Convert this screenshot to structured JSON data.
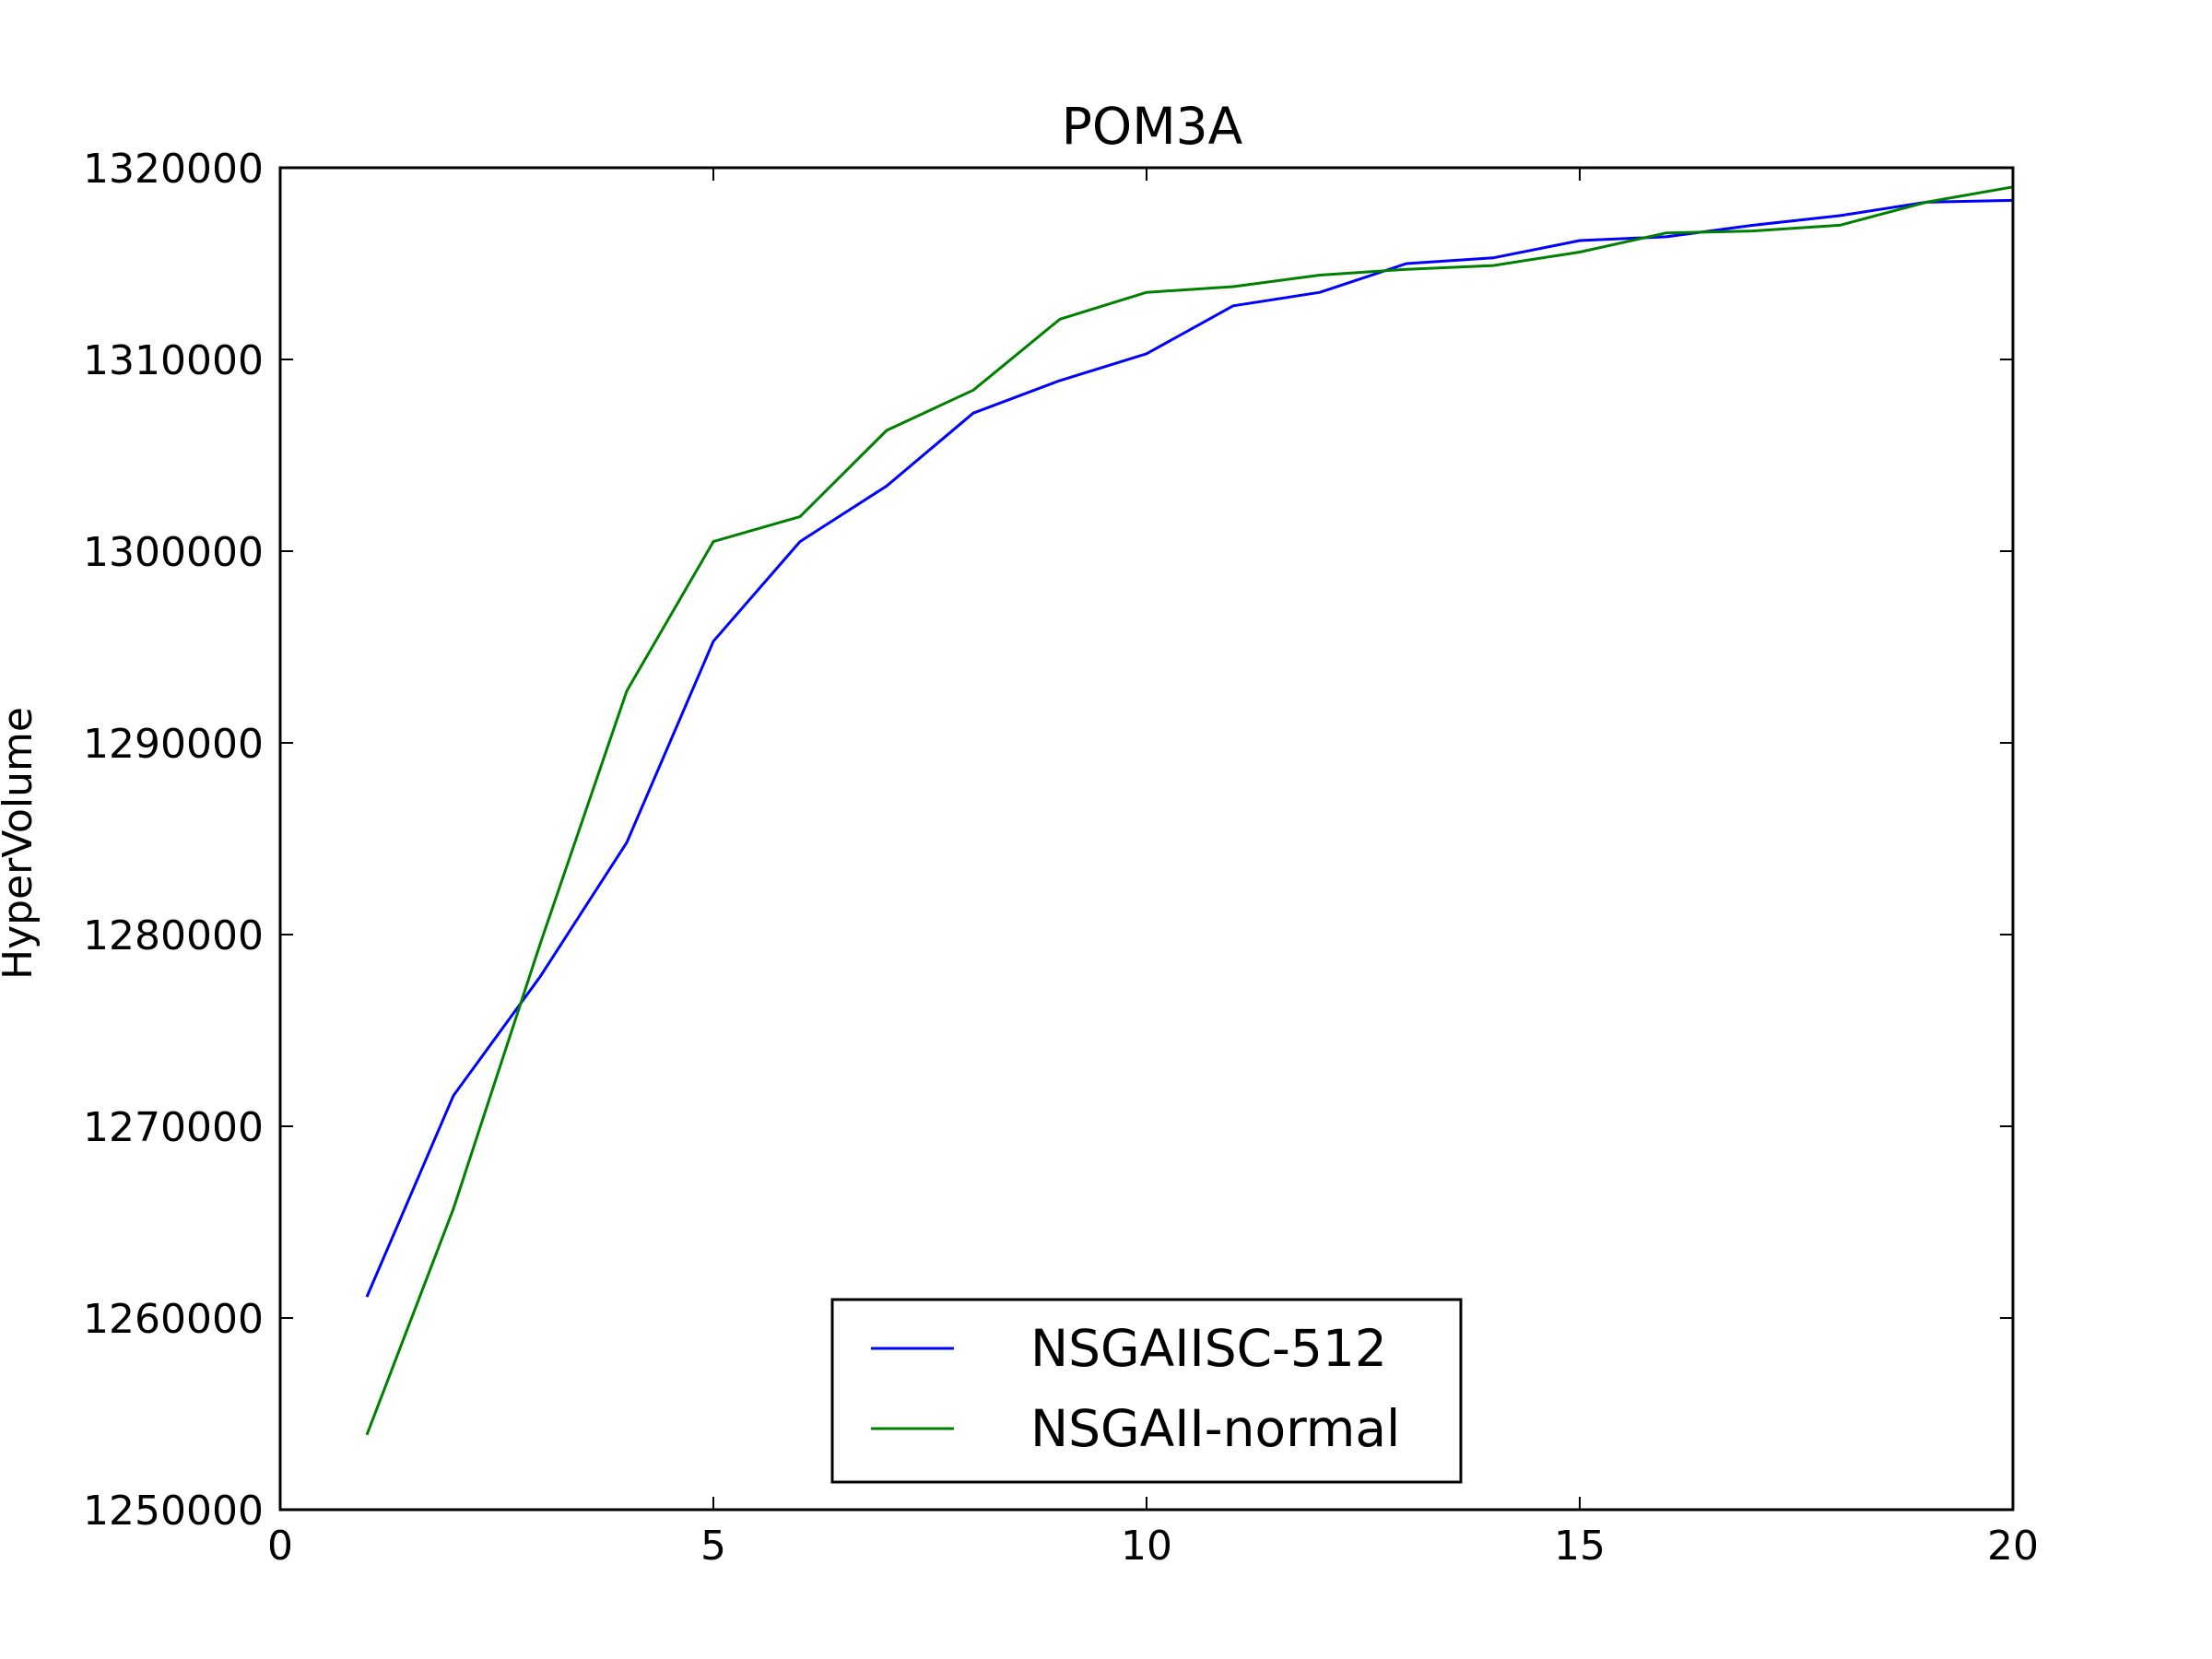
{
  "chart_data": {
    "type": "line",
    "title": "POM3A",
    "xlabel": "",
    "ylabel": "HyperVolume",
    "xlim": [
      0,
      20
    ],
    "ylim": [
      1250000,
      1320000
    ],
    "xticks": [
      0,
      5,
      10,
      15,
      20
    ],
    "yticks": [
      1250000,
      1260000,
      1270000,
      1280000,
      1290000,
      1300000,
      1310000,
      1320000
    ],
    "grid": false,
    "legend_position": "bottom-center",
    "x": [
      1,
      2,
      3,
      4,
      5,
      6,
      7,
      8,
      9,
      10,
      11,
      12,
      13,
      14,
      15,
      16,
      17,
      18,
      19,
      20
    ],
    "series": [
      {
        "name": "NSGAIISC-512",
        "color": "#0000ff",
        "values": [
          1261100,
          1271600,
          1277800,
          1284800,
          1295300,
          1300500,
          1303400,
          1307200,
          1308900,
          1310300,
          1312800,
          1313500,
          1315000,
          1315300,
          1316200,
          1316400,
          1317000,
          1317500,
          1318200,
          1318300
        ]
      },
      {
        "name": "NSGAII-normal",
        "color": "#008000",
        "values": [
          1253900,
          1265700,
          1279500,
          1292700,
          1300500,
          1301800,
          1306300,
          1308400,
          1312100,
          1313500,
          1313800,
          1314400,
          1314700,
          1314900,
          1315600,
          1316600,
          1316700,
          1317000,
          1318200,
          1319000
        ]
      }
    ]
  }
}
